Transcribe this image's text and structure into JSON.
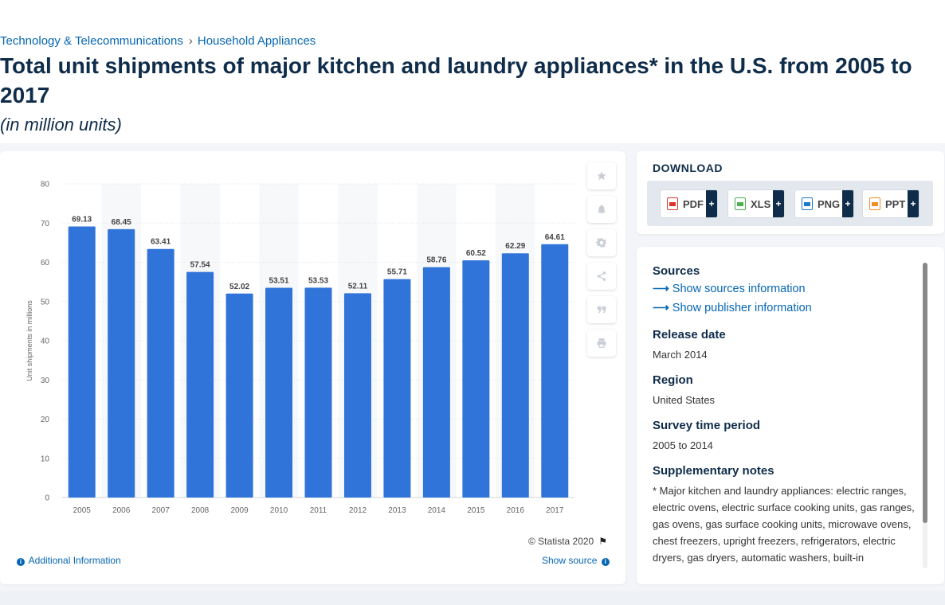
{
  "breadcrumb": {
    "items": [
      "Technology & Telecommunications",
      "Household Appliances"
    ],
    "separator": "›"
  },
  "page": {
    "title": "Total unit shipments of major kitchen and laundry appliances* in the U.S. from 2005 to 2017",
    "subtitle": "(in million units)"
  },
  "chart_data": {
    "type": "bar",
    "categories": [
      "2005",
      "2006",
      "2007",
      "2008",
      "2009",
      "2010",
      "2011",
      "2012",
      "2013",
      "2014",
      "2015",
      "2016",
      "2017"
    ],
    "values": [
      69.13,
      68.45,
      63.41,
      57.54,
      52.02,
      53.51,
      53.53,
      52.11,
      55.71,
      58.76,
      60.52,
      62.29,
      64.61
    ],
    "value_labels": [
      "69.13",
      "68.45",
      "63.41",
      "57.54",
      "52.02",
      "53.51",
      "53.53",
      "52.11",
      "55.71",
      "58.76",
      "60.52",
      "62.29",
      "64.61"
    ],
    "yticks": [
      "0",
      "10",
      "20",
      "30",
      "40",
      "50",
      "60",
      "70",
      "80"
    ],
    "ylim": [
      0,
      80
    ],
    "ylabel": "Unit shipments in millions",
    "xlabel": "",
    "bar_color": "#3073d9",
    "grid": true
  },
  "chart_footer": {
    "copyright": "© Statista 2020",
    "additional_info": "Additional Information",
    "show_source": "Show source"
  },
  "toolbar": {
    "icons": [
      "star-icon",
      "bell-icon",
      "gear-icon",
      "share-icon",
      "quote-icon",
      "print-icon"
    ]
  },
  "download": {
    "title": "DOWNLOAD",
    "buttons": [
      {
        "label": "PDF",
        "color": "#d9342b"
      },
      {
        "label": "XLS",
        "color": "#4caf50"
      },
      {
        "label": "PNG",
        "color": "#1e78c8"
      },
      {
        "label": "PPT",
        "color": "#f08c28"
      }
    ],
    "plus": "+"
  },
  "info": {
    "sources_title": "Sources",
    "show_sources": "Show sources information",
    "show_publisher": "Show publisher information",
    "release_title": "Release date",
    "release_value": "March 2014",
    "region_title": "Region",
    "region_value": "United States",
    "survey_title": "Survey time period",
    "survey_value": "2005 to 2014",
    "notes_title": "Supplementary notes",
    "notes_value": "* Major kitchen and laundry appliances: electric ranges, electric ovens, electric surface cooking units, gas ranges, gas ovens, gas surface cooking units, microwave ovens, chest freezers, upright freezers, refrigerators, electric dryers, gas dryers, automatic washers, built-in dishwashers, portable"
  }
}
